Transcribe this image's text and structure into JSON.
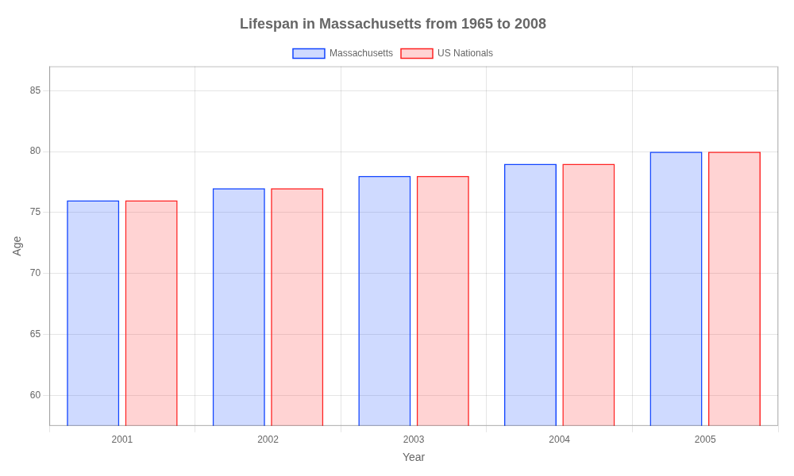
{
  "chart_data": {
    "type": "bar",
    "title": "Lifespan in Massachusetts from 1965 to 2008",
    "x_label": "Year",
    "y_label": "Age",
    "categories": [
      "2001",
      "2002",
      "2003",
      "2004",
      "2005"
    ],
    "series": [
      {
        "name": "Massachusetts",
        "color": "#1144ff",
        "values": [
          76,
          77,
          78,
          79,
          80
        ]
      },
      {
        "name": "US Nationals",
        "color": "#ff2222",
        "values": [
          76,
          77,
          78,
          79,
          80
        ]
      }
    ],
    "ylim": [
      57.5,
      87
    ],
    "yticks": [
      60,
      65,
      70,
      75,
      80,
      85
    ],
    "grid": true,
    "legend": "top"
  }
}
